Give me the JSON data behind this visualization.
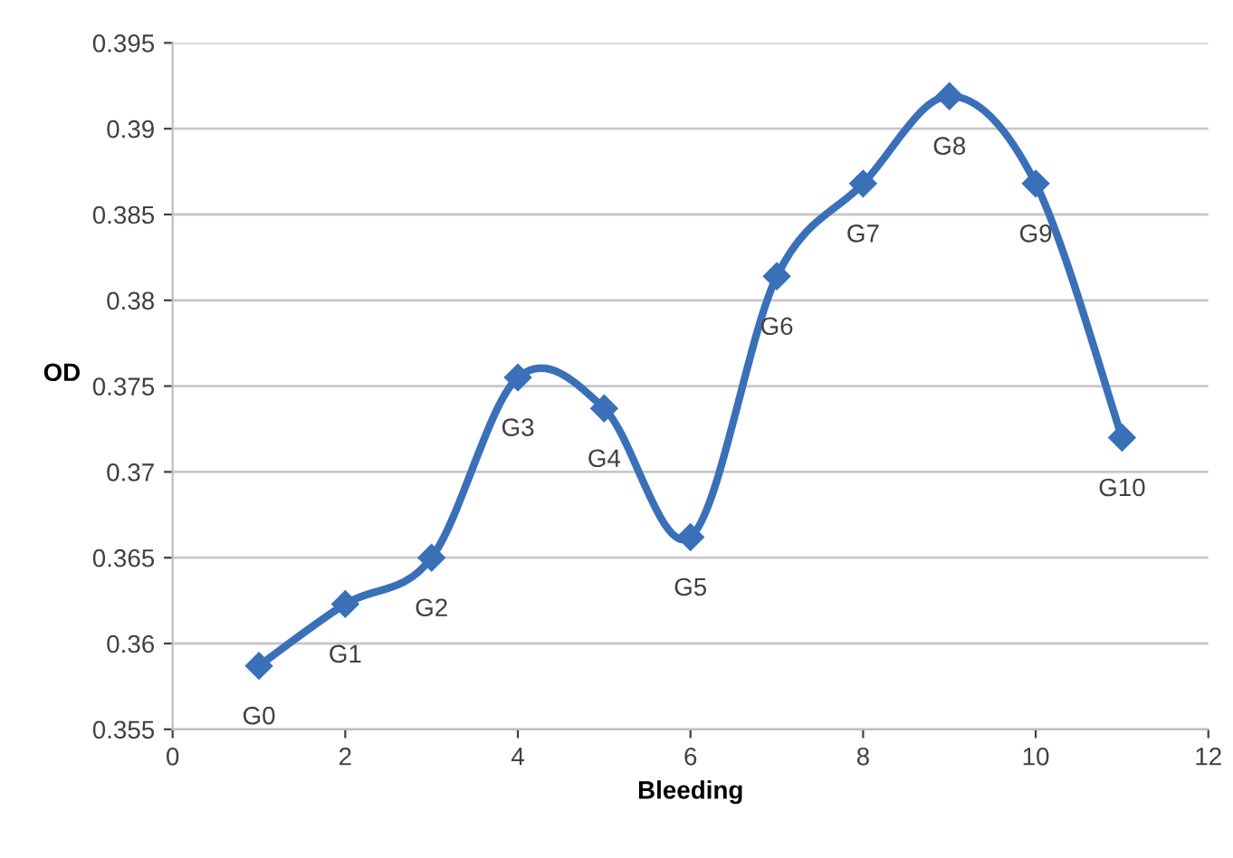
{
  "chart_data": {
    "type": "line",
    "xlabel": "Bleeding",
    "ylabel": "OD",
    "x": [
      1,
      2,
      3,
      4,
      5,
      6,
      7,
      8,
      9,
      10,
      11
    ],
    "series": [
      {
        "color": "#3a70b8",
        "values": [
          0.3587,
          0.3623,
          0.365,
          0.3755,
          0.3737,
          0.3662,
          0.3814,
          0.3868,
          0.3919,
          0.3868,
          0.372
        ]
      }
    ],
    "annotations": [
      {
        "text": "G0",
        "x": 1,
        "y": 0.3587
      },
      {
        "text": "G1",
        "x": 2,
        "y": 0.3623
      },
      {
        "text": "G2",
        "x": 3,
        "y": 0.365
      },
      {
        "text": "G3",
        "x": 4,
        "y": 0.3755
      },
      {
        "text": "G4",
        "x": 5,
        "y": 0.3737
      },
      {
        "text": "G5",
        "x": 6,
        "y": 0.3662
      },
      {
        "text": "G6",
        "x": 7,
        "y": 0.3814
      },
      {
        "text": "G7",
        "x": 8,
        "y": 0.3868
      },
      {
        "text": "G8",
        "x": 9,
        "y": 0.3919
      },
      {
        "text": "G9",
        "x": 10,
        "y": 0.3868
      },
      {
        "text": "G10",
        "x": 11,
        "y": 0.372
      }
    ],
    "xlim": [
      0,
      12
    ],
    "xticks": [
      0,
      2,
      4,
      6,
      8,
      10,
      12
    ],
    "ylim": [
      0.355,
      0.395
    ],
    "yticks": [
      0.355,
      0.36,
      0.365,
      0.37,
      0.375,
      0.38,
      0.385,
      0.39,
      0.395
    ],
    "grid": "y",
    "marker": "diamond",
    "line_style": "solid"
  }
}
